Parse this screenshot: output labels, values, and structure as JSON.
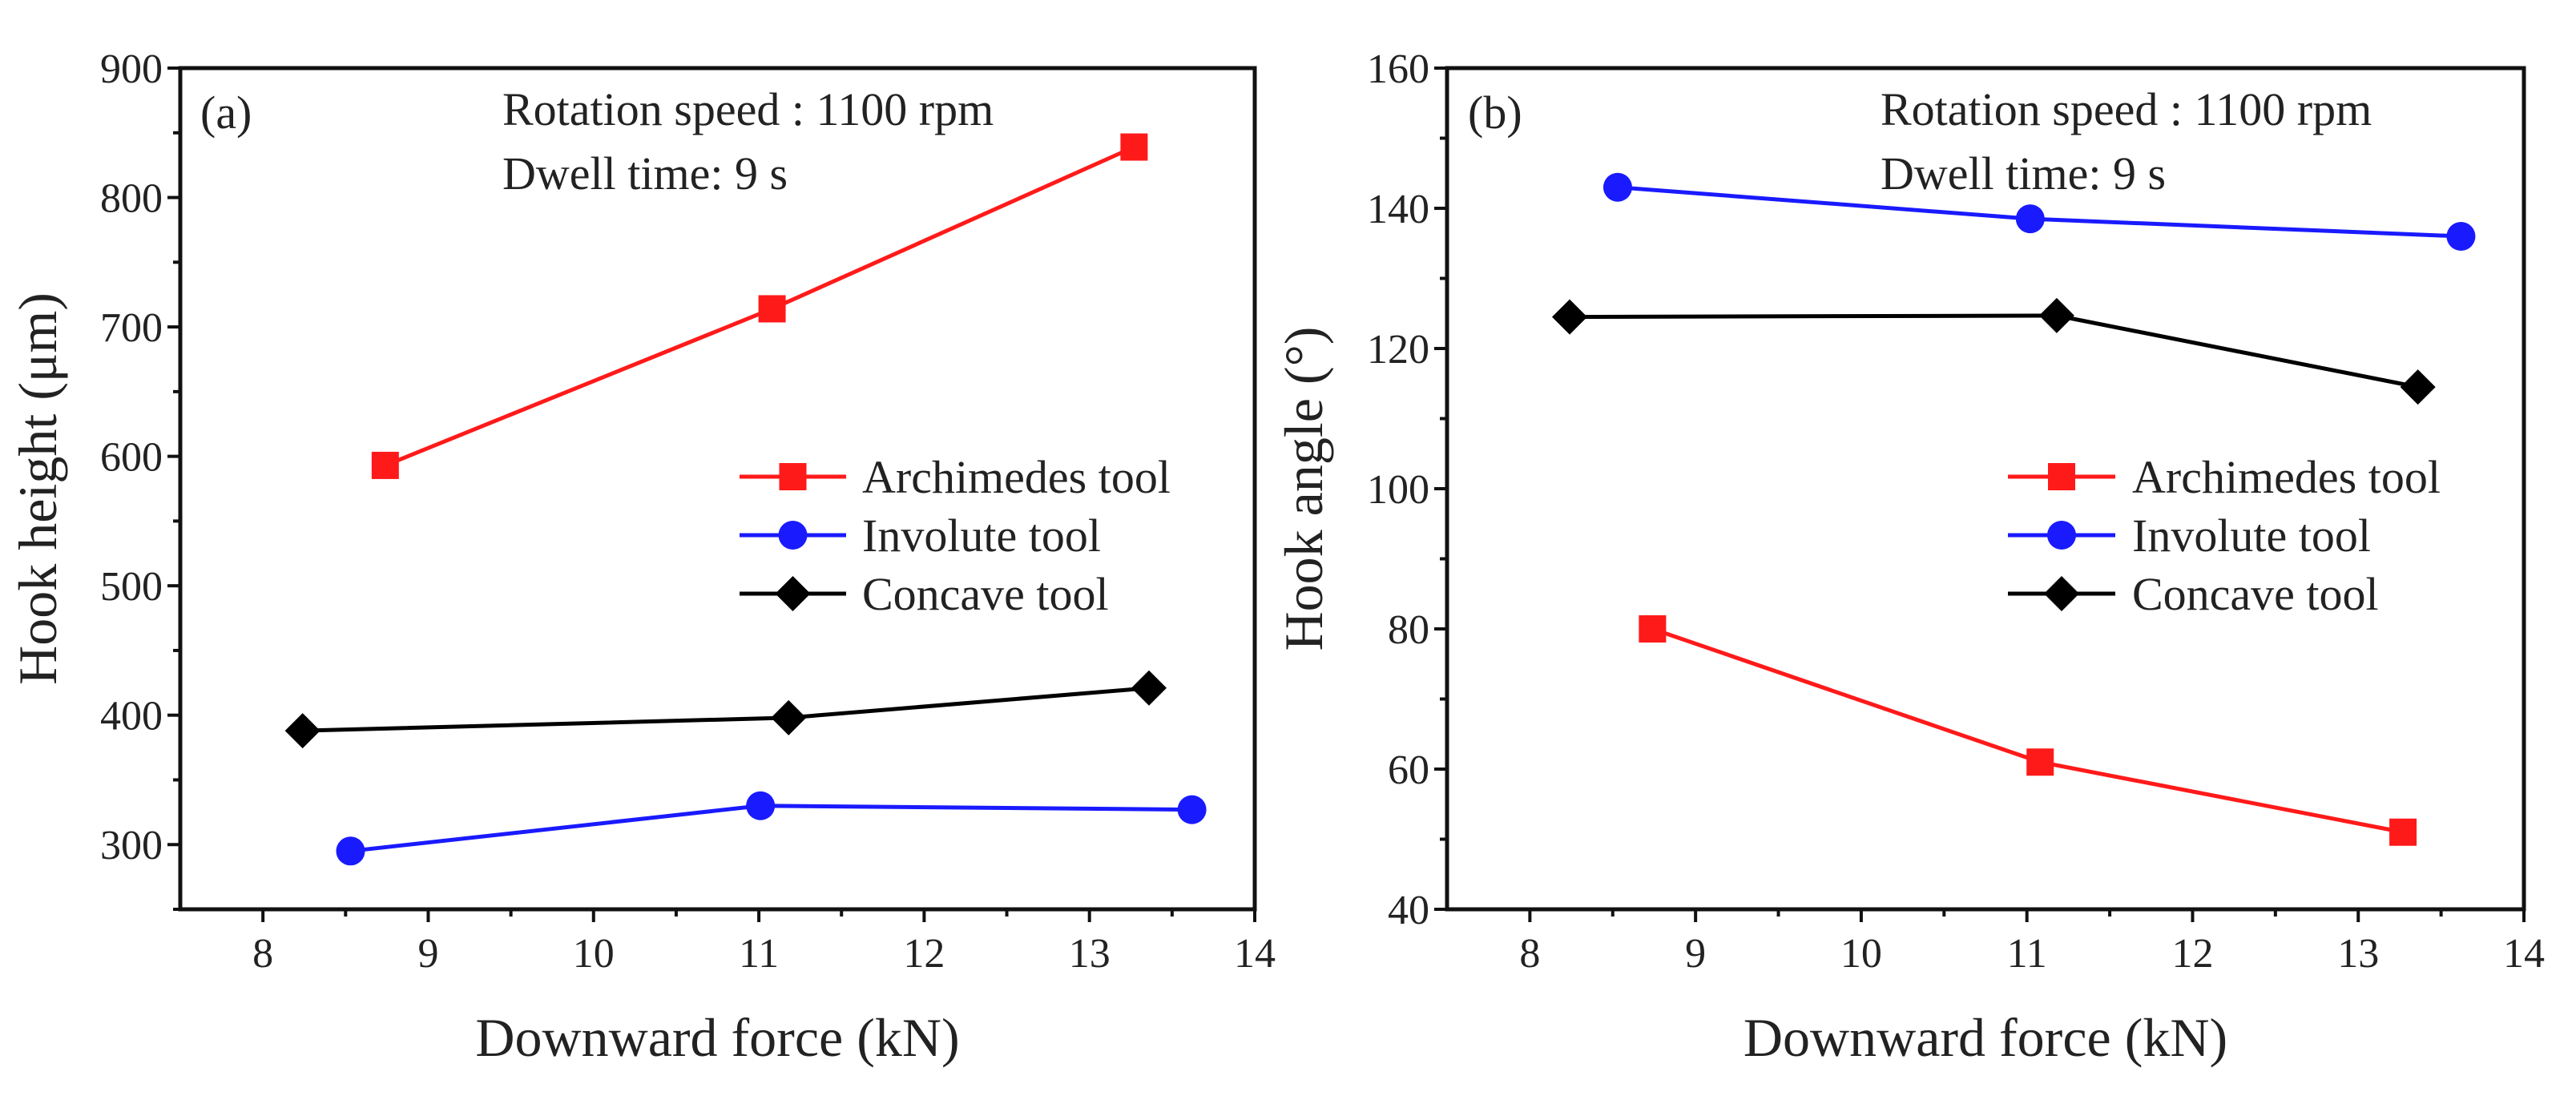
{
  "chart_data": [
    {
      "type": "line",
      "panel_label": "(a)",
      "annotations": [
        "Rotation speed : 1100 rpm",
        "Dwell time: 9 s"
      ],
      "xlabel": "Downward force (kN)",
      "ylabel": "Hook height (μm)",
      "xlim": [
        7.5,
        14
      ],
      "ylim": [
        250,
        900
      ],
      "xticks": [
        8,
        9,
        10,
        11,
        12,
        13,
        14
      ],
      "yticks": [
        300,
        400,
        500,
        600,
        700,
        800,
        900
      ],
      "legend_position": "center-right",
      "series": [
        {
          "name": "Archimedes tool",
          "color": "#ff1a1a",
          "marker": "square",
          "x": [
            8.74,
            11.08,
            13.27
          ],
          "y": [
            593,
            714,
            839
          ]
        },
        {
          "name": "Involute tool",
          "color": "#1a1aff",
          "marker": "circle",
          "x": [
            8.53,
            11.01,
            13.62
          ],
          "y": [
            295,
            330,
            327
          ]
        },
        {
          "name": "Concave tool",
          "color": "#000000",
          "marker": "diamond",
          "x": [
            8.24,
            11.18,
            13.36
          ],
          "y": [
            388,
            398,
            421
          ]
        }
      ]
    },
    {
      "type": "line",
      "panel_label": "(b)",
      "annotations": [
        "Rotation speed : 1100 rpm",
        "Dwell time: 9 s"
      ],
      "xlabel": "Downward force (kN)",
      "ylabel": "Hook angle (°)",
      "xlim": [
        7.5,
        14
      ],
      "ylim": [
        40,
        160
      ],
      "xticks": [
        8,
        9,
        10,
        11,
        12,
        13,
        14
      ],
      "yticks": [
        40,
        60,
        80,
        100,
        120,
        140,
        160
      ],
      "legend_position": "center-right",
      "series": [
        {
          "name": "Archimedes tool",
          "color": "#ff1a1a",
          "marker": "square",
          "x": [
            8.74,
            11.08,
            13.27
          ],
          "y": [
            80,
            61,
            51
          ]
        },
        {
          "name": "Involute tool",
          "color": "#1a1aff",
          "marker": "circle",
          "x": [
            8.53,
            11.02,
            13.62
          ],
          "y": [
            143,
            138.5,
            136
          ]
        },
        {
          "name": "Concave tool",
          "color": "#000000",
          "marker": "diamond",
          "x": [
            8.24,
            11.18,
            13.36
          ],
          "y": [
            124.5,
            124.7,
            114.5
          ]
        }
      ]
    }
  ]
}
